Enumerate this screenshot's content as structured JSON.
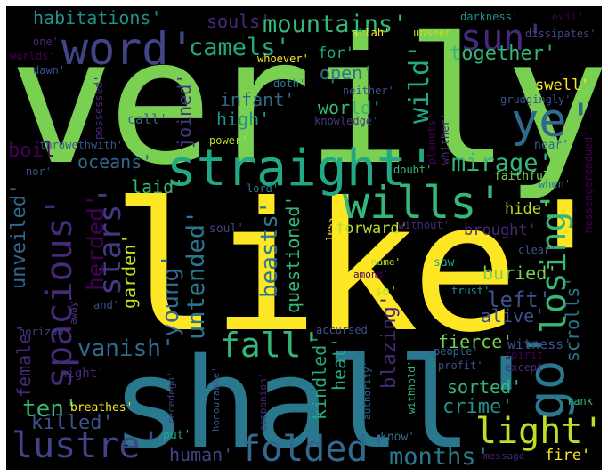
{
  "words": [
    {
      "text": "verily'",
      "color": "#7ad151"
    },
    {
      "text": "like'",
      "color": "#fde725"
    },
    {
      "text": "shall'",
      "color": "#2a788e"
    },
    {
      "text": "straight'",
      "color": "#22a884"
    },
    {
      "text": "word'",
      "color": "#414487"
    },
    {
      "text": "wills'",
      "color": "#35b779"
    },
    {
      "text": "sun'",
      "color": "#482878"
    },
    {
      "text": "ye'",
      "color": "#31688e"
    },
    {
      "text": "go'",
      "color": "#2a788e"
    },
    {
      "text": "spacious'",
      "color": "#482878"
    },
    {
      "text": "light'",
      "color": "#bddf26"
    },
    {
      "text": "folded'",
      "color": "#31688e"
    },
    {
      "text": "lustre'",
      "color": "#414487"
    },
    {
      "text": "fall'",
      "color": "#35b779"
    },
    {
      "text": "losing'",
      "color": "#35b779"
    },
    {
      "text": "stars'",
      "color": "#443983"
    },
    {
      "text": "mountains'",
      "color": "#35b779"
    },
    {
      "text": "camels'",
      "color": "#22a884"
    },
    {
      "text": "mirage'",
      "color": "#35b779"
    },
    {
      "text": "untended'",
      "color": "#2a788e"
    },
    {
      "text": "months'",
      "color": "#2a788e"
    },
    {
      "text": "vanish'",
      "color": "#31688e"
    },
    {
      "text": "habitations'",
      "color": "#21918c"
    },
    {
      "text": "beasts'",
      "color": "#2a788e"
    },
    {
      "text": "herded'",
      "color": "#440154"
    },
    {
      "text": "young'",
      "color": "#31688e"
    },
    {
      "text": "wild'",
      "color": "#22a884"
    },
    {
      "text": "fierce'",
      "color": "#7ad151"
    },
    {
      "text": "ten'",
      "color": "#35b779"
    },
    {
      "text": "killed'",
      "color": "#3b528b"
    },
    {
      "text": "human'",
      "color": "#414487"
    },
    {
      "text": "crime'",
      "color": "#21918c"
    },
    {
      "text": "left'",
      "color": "#3b528b"
    },
    {
      "text": "souls'",
      "color": "#482878"
    },
    {
      "text": "together'",
      "color": "#35b779"
    },
    {
      "text": "open'",
      "color": "#2a788e"
    },
    {
      "text": "world'",
      "color": "#35b779"
    },
    {
      "text": "infant'",
      "color": "#31688e"
    },
    {
      "text": "high'",
      "color": "#21918c"
    },
    {
      "text": "oceans'",
      "color": "#31688e"
    },
    {
      "text": "laid'",
      "color": "#35b779"
    },
    {
      "text": "boil",
      "color": "#440154"
    },
    {
      "text": "joined'",
      "color": "#443983"
    },
    {
      "text": "unveiled'",
      "color": "#31688e"
    },
    {
      "text": "female'",
      "color": "#482878"
    },
    {
      "text": "scrolls'",
      "color": "#2a788e"
    },
    {
      "text": "alive'",
      "color": "#3b528b"
    },
    {
      "text": "questioned'",
      "color": "#35b779"
    },
    {
      "text": "kindled'",
      "color": "#22a884"
    },
    {
      "text": "heat'",
      "color": "#22a884"
    },
    {
      "text": "blazing'",
      "color": "#482878"
    },
    {
      "text": "buried'",
      "color": "#7ad151"
    },
    {
      "text": "sorted'",
      "color": "#35b779"
    },
    {
      "text": "swell'",
      "color": "#fde725"
    },
    {
      "text": "hide'",
      "color": "#b5de2b"
    },
    {
      "text": "brought'",
      "color": "#482878"
    },
    {
      "text": "garden'",
      "color": "#bddf26"
    },
    {
      "text": "forward'",
      "color": "#b5de2b"
    },
    {
      "text": "for'",
      "color": "#22a884"
    },
    {
      "text": "fire'",
      "color": "#fde725"
    },
    {
      "text": "witness'",
      "color": "#3b528b"
    },
    {
      "text": "dissipates'",
      "color": "#414487"
    },
    {
      "text": "darkness'",
      "color": "#21918c"
    },
    {
      "text": "evil'",
      "color": "#440154"
    },
    {
      "text": "allah'",
      "color": "#fde725"
    },
    {
      "text": "unseen",
      "color": "#bddf26"
    },
    {
      "text": "whoever'",
      "color": "#fde725"
    },
    {
      "text": "one'",
      "color": "#482878"
    },
    {
      "text": "worlds'",
      "color": "#440154"
    },
    {
      "text": "dawn'",
      "color": "#3b528b"
    },
    {
      "text": "possessed'",
      "color": "#482878"
    },
    {
      "text": "call'",
      "color": "#31688e"
    },
    {
      "text": "doth'",
      "color": "#2a788e"
    },
    {
      "text": "neither'",
      "color": "#3b528b"
    },
    {
      "text": "knowledge'",
      "color": "#443983"
    },
    {
      "text": "grudgingly'",
      "color": "#3b528b"
    },
    {
      "text": "messengerendued'",
      "color": "#440154"
    },
    {
      "text": "power'",
      "color": "#b5de2b"
    },
    {
      "text": "planets'",
      "color": "#440154"
    },
    {
      "text": "whither'",
      "color": "#482878"
    },
    {
      "text": "near'",
      "color": "#31688e"
    },
    {
      "text": "'throwethwith'",
      "color": "#3b528b"
    },
    {
      "text": "nor'",
      "color": "#3b528b"
    },
    {
      "text": "doubt'",
      "color": "#35b779"
    },
    {
      "text": "faithful'",
      "color": "#7ad151"
    },
    {
      "text": "when'",
      "color": "#2a788e"
    },
    {
      "text": "lord'",
      "color": "#2a788e"
    },
    {
      "text": "soul'",
      "color": "#414487"
    },
    {
      "text": "less",
      "color": "#fde725"
    },
    {
      "text": "without'",
      "color": "#482878"
    },
    {
      "text": "clear'",
      "color": "#3b528b"
    },
    {
      "text": "name'",
      "color": "#b5de2b"
    },
    {
      "text": "saw'",
      "color": "#22a884"
    },
    {
      "text": "among'",
      "color": "#440154"
    },
    {
      "text": "so'",
      "color": "#b5de2b"
    },
    {
      "text": "trust'",
      "color": "#21918c"
    },
    {
      "text": "away'",
      "color": "#443983"
    },
    {
      "text": "and'",
      "color": "#3b528b"
    },
    {
      "text": "horizon",
      "color": "#414487"
    },
    {
      "text": "accursed",
      "color": "#3b528b"
    },
    {
      "text": "night'",
      "color": "#482878"
    },
    {
      "text": "people'",
      "color": "#31688e"
    },
    {
      "text": "spirit'",
      "color": "#440154"
    },
    {
      "text": "except'",
      "color": "#482878"
    },
    {
      "text": "profit'",
      "color": "#3b528b"
    },
    {
      "text": "authority'",
      "color": "#31688e"
    },
    {
      "text": "withhold'",
      "color": "#35b779"
    },
    {
      "text": "recedego'",
      "color": "#414487"
    },
    {
      "text": "companion'",
      "color": "#482878"
    },
    {
      "text": "honourable'",
      "color": "#3b528b"
    },
    {
      "text": "breathes'",
      "color": "#fde725"
    },
    {
      "text": "rank'",
      "color": "#35b779"
    },
    {
      "text": "put'",
      "color": "#22a884"
    },
    {
      "text": "know'",
      "color": "#31688e"
    },
    {
      "text": "message",
      "color": "#482878"
    }
  ]
}
